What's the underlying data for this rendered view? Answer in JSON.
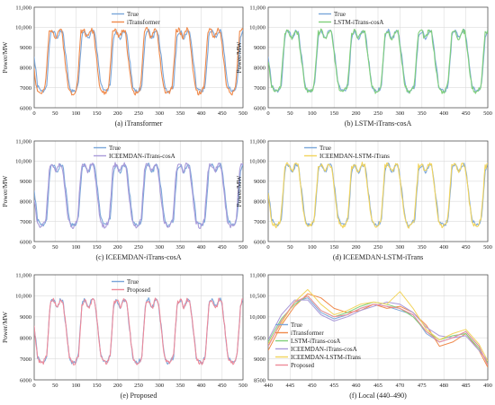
{
  "chart_data": [
    {
      "type": "line",
      "caption": "(a) iTransformer",
      "ylabel": "Power/MW",
      "xlim": [
        0,
        500
      ],
      "ylim": [
        6000,
        11000
      ],
      "xticks": [
        "0",
        "50",
        "100",
        "150",
        "200",
        "250",
        "300",
        "350",
        "400",
        "450",
        "500"
      ],
      "yticks": [
        "6000",
        "7000",
        "8000",
        "9000",
        "10,000",
        "11,000"
      ],
      "grid": true,
      "legend_position": "top-center",
      "series": [
        {
          "name": "True",
          "color": "#7aa6d9",
          "style": "cycle",
          "phase": 0,
          "amp": 1.0,
          "seed": 1
        },
        {
          "name": "iTransformer",
          "color": "#f08a4b",
          "style": "cycle",
          "phase": 3,
          "amp": 1.05,
          "seed": 2
        }
      ]
    },
    {
      "type": "line",
      "caption": "(b) LSTM-iTrans-cosA",
      "ylabel": "Power/MW",
      "xlim": [
        0,
        500
      ],
      "ylim": [
        6000,
        11000
      ],
      "xticks": [
        "0",
        "50",
        "100",
        "150",
        "200",
        "250",
        "300",
        "350",
        "400",
        "450",
        "500"
      ],
      "yticks": [
        "6000",
        "7000",
        "8000",
        "9000",
        "10,000",
        "11,000"
      ],
      "grid": true,
      "legend_position": "top-center",
      "series": [
        {
          "name": "True",
          "color": "#7aa6d9",
          "style": "cycle",
          "phase": 0,
          "amp": 1.0,
          "seed": 1
        },
        {
          "name": "LSTM-iTrans-cosA",
          "color": "#7fcf7a",
          "style": "cycle",
          "phase": 1,
          "amp": 1.0,
          "seed": 3
        }
      ]
    },
    {
      "type": "line",
      "caption": "(c) ICEEMDAN-iTrans-cosA",
      "ylabel": "Power/MW",
      "xlim": [
        0,
        500
      ],
      "ylim": [
        6000,
        11000
      ],
      "xticks": [
        "0",
        "50",
        "100",
        "150",
        "200",
        "250",
        "300",
        "350",
        "400",
        "450",
        "500"
      ],
      "yticks": [
        "6000",
        "7000",
        "8000",
        "9000",
        "10,000",
        "11,000"
      ],
      "grid": true,
      "legend_position": "top-center",
      "series": [
        {
          "name": "True",
          "color": "#7aa6d9",
          "style": "cycle",
          "phase": 0,
          "amp": 1.0,
          "seed": 1
        },
        {
          "name": "ICEEMDAN-iTrans-cosA",
          "color": "#a99ad9",
          "style": "cycle",
          "phase": 2,
          "amp": 1.03,
          "seed": 4
        }
      ]
    },
    {
      "type": "line",
      "caption": "(d) ICEEMDAN-LSTM-iTrans",
      "ylabel": "Power/MW",
      "xlim": [
        0,
        500
      ],
      "ylim": [
        6000,
        11000
      ],
      "xticks": [
        "0",
        "50",
        "100",
        "150",
        "200",
        "250",
        "300",
        "350",
        "400",
        "450",
        "500"
      ],
      "yticks": [
        "6000",
        "7000",
        "8000",
        "9000",
        "10,000",
        "11,000"
      ],
      "grid": true,
      "legend_position": "top-center",
      "series": [
        {
          "name": "True",
          "color": "#7aa6d9",
          "style": "cycle",
          "phase": 0,
          "amp": 1.0,
          "seed": 1
        },
        {
          "name": "ICEEMDAN-LSTM-iTrans",
          "color": "#f2d45c",
          "style": "cycle",
          "phase": 1,
          "amp": 1.02,
          "seed": 5
        }
      ]
    },
    {
      "type": "line",
      "caption": "(e) Proposed",
      "ylabel": "Power/MW",
      "xlim": [
        0,
        500
      ],
      "ylim": [
        6000,
        11000
      ],
      "xticks": [
        "0",
        "50",
        "100",
        "150",
        "200",
        "250",
        "300",
        "350",
        "400",
        "450",
        "500"
      ],
      "yticks": [
        "6000",
        "7000",
        "8000",
        "9000",
        "10,000",
        "11,000"
      ],
      "grid": true,
      "legend_position": "top-center",
      "series": [
        {
          "name": "True",
          "color": "#7aa6d9",
          "style": "cycle",
          "phase": 0,
          "amp": 1.0,
          "seed": 1
        },
        {
          "name": "Proposed",
          "color": "#ee8a9a",
          "style": "cycle",
          "phase": 0,
          "amp": 1.0,
          "seed": 6
        }
      ]
    },
    {
      "type": "line",
      "caption": "(f) Local (440–490)",
      "ylabel": "",
      "xlim": [
        440,
        490
      ],
      "ylim": [
        8500,
        11000
      ],
      "xticks": [
        "440",
        "445",
        "450",
        "455",
        "460",
        "465",
        "470",
        "475",
        "480",
        "485",
        "490"
      ],
      "yticks": [
        "8500",
        "9000",
        "9500",
        "10,000",
        "10,500",
        "11,000"
      ],
      "grid": true,
      "legend_position": "bottom-left",
      "series": [
        {
          "name": "True",
          "color": "#7aa6d9",
          "style": "local",
          "x": [
            440,
            443,
            446,
            449,
            452,
            455,
            458,
            461,
            464,
            467,
            470,
            473,
            476,
            479,
            482,
            485,
            488,
            490
          ],
          "y": [
            9300,
            9900,
            10350,
            10450,
            10100,
            9950,
            10050,
            10200,
            10300,
            10250,
            10150,
            10050,
            9600,
            9400,
            9500,
            9650,
            9300,
            8850
          ]
        },
        {
          "name": "iTransformer",
          "color": "#f08a4b",
          "style": "local",
          "x": [
            440,
            443,
            446,
            449,
            452,
            455,
            458,
            461,
            464,
            467,
            470,
            473,
            476,
            479,
            482,
            485,
            488,
            490
          ],
          "y": [
            9200,
            9800,
            10250,
            10550,
            10450,
            10200,
            10100,
            10150,
            10300,
            10200,
            10250,
            10100,
            9800,
            9300,
            9400,
            9600,
            9200,
            8800
          ]
        },
        {
          "name": "LSTM-iTrans-cosA",
          "color": "#7fcf7a",
          "style": "local",
          "x": [
            440,
            443,
            446,
            449,
            452,
            455,
            458,
            461,
            464,
            467,
            470,
            473,
            476,
            479,
            482,
            485,
            488,
            490
          ],
          "y": [
            9400,
            9950,
            10300,
            10500,
            10150,
            10000,
            10100,
            10250,
            10350,
            10300,
            10200,
            10000,
            9650,
            9450,
            9550,
            9600,
            9250,
            8900
          ]
        },
        {
          "name": "ICEEMDAN-iTrans-cosA",
          "color": "#a99ad9",
          "style": "local",
          "x": [
            440,
            443,
            446,
            449,
            452,
            455,
            458,
            461,
            464,
            467,
            470,
            473,
            476,
            479,
            482,
            485,
            488,
            490
          ],
          "y": [
            9450,
            10050,
            10400,
            10400,
            10050,
            9900,
            10000,
            10150,
            10250,
            10350,
            10300,
            10100,
            9750,
            9550,
            9500,
            9550,
            9200,
            8950
          ]
        },
        {
          "name": "ICEEMDAN-LSTM-iTrans",
          "color": "#f2d45c",
          "style": "local",
          "x": [
            440,
            443,
            446,
            449,
            452,
            455,
            458,
            461,
            464,
            467,
            470,
            473,
            476,
            479,
            482,
            485,
            488,
            490
          ],
          "y": [
            9350,
            9850,
            10350,
            10650,
            10300,
            10050,
            10150,
            10300,
            10350,
            10300,
            10600,
            10200,
            9700,
            9450,
            9600,
            9700,
            9350,
            8950
          ]
        },
        {
          "name": "Proposed",
          "color": "#ee8a9a",
          "style": "local",
          "x": [
            440,
            443,
            446,
            449,
            452,
            455,
            458,
            461,
            464,
            467,
            470,
            473,
            476,
            479,
            482,
            485,
            488,
            490
          ],
          "y": [
            9300,
            9900,
            10350,
            10500,
            10150,
            10000,
            10050,
            10200,
            10300,
            10250,
            10200,
            10050,
            9650,
            9400,
            9500,
            9650,
            9300,
            8850
          ]
        }
      ]
    }
  ]
}
